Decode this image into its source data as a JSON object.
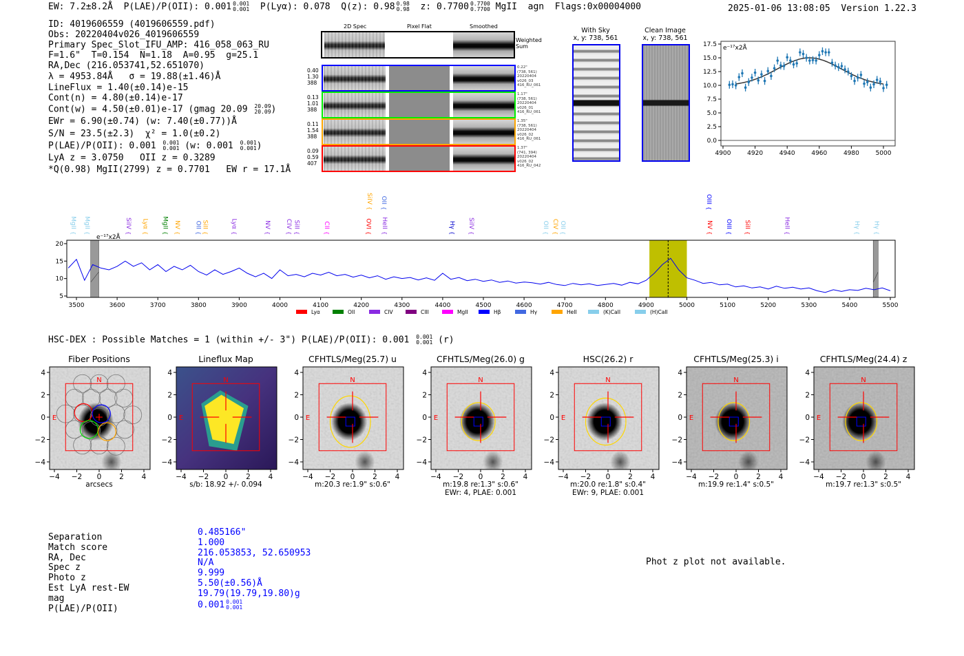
{
  "header": {
    "ew": "EW: 7.2±8.2Å",
    "plae": "P(LAE)/P(OII): 0.001",
    "plae_hi": "0.001",
    "plae_lo": "0.001",
    "plya": "P(Lyα): 0.078",
    "qz": "Q(z): 0.98",
    "qz_hi": "0.98",
    "qz_lo": "0.98",
    "z": "z: 0.7700",
    "z_hi": "0.7700",
    "z_lo": "0.7700",
    "line": "MgII",
    "class": "agn",
    "flags": "Flags:0x00004000",
    "timestamp": "2025-01-06 13:08:05",
    "version": "Version 1.22.3"
  },
  "info": {
    "id": "ID: 4019606559 (4019606559.pdf)",
    "obs": "Obs: 20220404v026_4019606559",
    "primary": "Primary Spec_Slot_IFU_AMP: 416_058_063_RU",
    "fiber": "F=1.6\"  T=0.154  N=1.18  A=0.95  g=25.1",
    "radec": "RA,Dec (216.053741,52.651070)",
    "lambda": "λ = 4953.84Å   σ = 19.88(±1.46)Å",
    "lineflux": "LineFlux = 1.40(±0.14)e-15",
    "cont_n": "Cont(n) = 4.80(±0.14)e-17",
    "cont_w": "Cont(w) = 4.50(±0.01)e-17 (gmag 20.09",
    "cont_w_hi": "20.09",
    "cont_w_lo": "20.09",
    "cont_w_end": ")",
    "ewr": "EWr = 6.90(±0.74) (w: 7.40(±0.77))Å",
    "sn": "S/N = 23.5(±2.3)  χ² = 1.0(±0.2)",
    "plae": "P(LAE)/P(OII): 0.001",
    "plae_hi": "0.001",
    "plae_lo": "0.001",
    "plae_w": " (w: 0.001",
    "plae_w_hi": "0.001",
    "plae_w_lo": "0.001",
    "plae_w_end": ")",
    "lya": "LyA z = 3.0750   OII z = 0.3289",
    "mgii": "*Q(0.98) MgII(2799) z = 0.7701   EW r = 17.1Å"
  },
  "spec2d": {
    "col_headers": [
      "2D Spec",
      "Pixel Flat",
      "Smoothed"
    ],
    "weighted_sum_label": "Weighted\nSum",
    "rows": [
      {
        "color": "#0000ff",
        "left": "0.40\n1.30\n388",
        "right": "0.22\"\n(738, 561)\n20220404\nv026_03\n416_RU_061"
      },
      {
        "color": "#00ee00",
        "left": "0.13\n1.01\n388",
        "right": "1.17\"\n(738, 561)\n20220404\nv026_01\n416_RU_061"
      },
      {
        "color": "#ffa500",
        "left": "0.11\n1.54\n388",
        "right": "1.35\"\n(738, 561)\n20220404\nv026_02\n416_RU_061"
      },
      {
        "color": "#ff0000",
        "left": "0.09\n0.59\n407",
        "right": "1.37\"\n(741, 394)\n20220404\nv026_02\n416_RU_042"
      }
    ]
  },
  "sky": {
    "with_sky": "With Sky\nx, y: 738, 561",
    "clean": "Clean Image\nx, y: 738, 561"
  },
  "chart_data": [
    {
      "type": "scatter",
      "title": "",
      "unit_label": "e⁻¹⁷x2Å",
      "xlim": [
        4900,
        5007
      ],
      "ylim": [
        -0.5,
        18
      ],
      "xticks": [
        "4900",
        "4920",
        "4940",
        "4960",
        "4980",
        "5000"
      ],
      "yticks": [
        "0.0",
        "2.5",
        "5.0",
        "7.5",
        "10.0",
        "12.5",
        "15.0",
        "17.5"
      ],
      "x_start": 4904,
      "x_step": 2,
      "values": [
        10.1,
        10.2,
        10.0,
        11.5,
        12.2,
        9.6,
        10.6,
        11.4,
        12.3,
        10.9,
        12.0,
        10.8,
        12.6,
        11.7,
        13.1,
        14.5,
        13.6,
        13.5,
        15.1,
        14.5,
        13.8,
        14.0,
        16.0,
        15.7,
        15.0,
        14.5,
        14.6,
        14.5,
        15.5,
        16.2,
        16.0,
        16.0,
        14.1,
        13.6,
        13.3,
        13.5,
        12.9,
        12.5,
        11.7,
        10.8,
        11.4,
        11.9,
        10.3,
        10.6,
        9.6,
        10.2,
        11.0,
        10.7,
        9.5,
        10.1
      ],
      "error": 0.7,
      "fit": {
        "center": 4953.84,
        "sigma": 19.88,
        "amplitude": 5.1,
        "baseline": 9.9,
        "range": [
          4908,
          5000
        ]
      }
    },
    {
      "type": "line",
      "unit_label": "e⁻¹⁷x2Å",
      "xlim": [
        3476,
        5512
      ],
      "ylim": [
        4.5,
        21
      ],
      "xticks": [
        "3500",
        "3600",
        "3700",
        "3800",
        "3900",
        "4000",
        "4100",
        "4200",
        "4300",
        "4400",
        "4500",
        "4600",
        "4700",
        "4800",
        "4900",
        "5000",
        "5100",
        "5200",
        "5300",
        "5400",
        "5500"
      ],
      "yticks": [
        "5",
        "10",
        "15",
        "20"
      ],
      "x_start": 3480,
      "x_step": 20,
      "values": [
        13,
        15.5,
        9.5,
        14,
        13,
        12.5,
        13.5,
        15,
        13.5,
        14.5,
        12.5,
        14,
        12,
        13.5,
        12.5,
        13.8,
        12,
        11,
        12.5,
        11.2,
        12,
        13,
        11.5,
        10.5,
        11.5,
        10,
        12.5,
        10.8,
        11.2,
        10.5,
        11.5,
        11,
        11.8,
        10.8,
        11.2,
        10.4,
        11,
        10.2,
        10.8,
        9.8,
        10.5,
        10,
        10.3,
        9.6,
        10.2,
        9.5,
        11.5,
        9.8,
        10.3,
        9.4,
        9.8,
        9.2,
        9.6,
        8.9,
        9.3,
        8.7,
        9.0,
        8.8,
        8.4,
        8.9,
        8.3,
        8.0,
        8.6,
        8.2,
        8.5,
        8.0,
        8.3,
        8.6,
        8.1,
        8.9,
        8.5,
        9.5,
        11.5,
        14.0,
        15.8,
        12.5,
        10.2,
        9.5,
        8.6,
        8.9,
        8.2,
        8.4,
        7.6,
        7.9,
        7.3,
        7.6,
        7.0,
        7.8,
        7.2,
        7.5,
        7.0,
        7.3,
        6.5,
        6.0,
        6.8,
        6.3,
        6.8,
        6.6,
        7.2,
        6.8,
        7.3,
        6.5
      ],
      "highlight_range": [
        4908,
        5000
      ],
      "line_center": 4954,
      "masked_ranges": [
        [
          3535,
          3555
        ],
        [
          5458,
          5470
        ]
      ],
      "line_labels": [
        {
          "name": "MgII",
          "wave": 3493,
          "color": "#87ceeb",
          "row": 0
        },
        {
          "name": "MgII",
          "wave": 3527,
          "color": "#87ceeb",
          "row": 0
        },
        {
          "name": "SiIV",
          "wave": 3629,
          "color": "#8a2be2",
          "row": 0
        },
        {
          "name": "Lyα",
          "wave": 3670,
          "color": "#ffa500",
          "row": 0
        },
        {
          "name": "MgII",
          "wave": 3719,
          "color": "#008000",
          "row": 0
        },
        {
          "name": "NV",
          "wave": 3749,
          "color": "#ffa500",
          "row": 0
        },
        {
          "name": "OII",
          "wave": 3800,
          "color": "#4169e1",
          "row": 0
        },
        {
          "name": "SiII",
          "wave": 3817,
          "color": "#ffa500",
          "row": 0
        },
        {
          "name": "Lyα",
          "wave": 3888,
          "color": "#8a2be2",
          "row": 0
        },
        {
          "name": "NV",
          "wave": 3970,
          "color": "#8a2be2",
          "row": 0
        },
        {
          "name": "CIV",
          "wave": 4023,
          "color": "#8a2be2",
          "row": 0
        },
        {
          "name": "SiII",
          "wave": 4042,
          "color": "#8a2be2",
          "row": 0
        },
        {
          "name": "CII",
          "wave": 4116,
          "color": "#ff00ff",
          "row": 0
        },
        {
          "name": "OVI",
          "wave": 4218,
          "color": "#ff0000",
          "row": 0
        },
        {
          "name": "HeII",
          "wave": 4258,
          "color": "#8a2be2",
          "row": 0
        },
        {
          "name": "Hγ",
          "wave": 4424,
          "color": "#0000cd",
          "row": 0
        },
        {
          "name": "SiIV",
          "wave": 4471,
          "color": "#8a2be2",
          "row": 0
        },
        {
          "name": "OII",
          "wave": 4654,
          "color": "#87ceeb",
          "row": 0
        },
        {
          "name": "CIV",
          "wave": 4678,
          "color": "#ffa500",
          "row": 0
        },
        {
          "name": "OII",
          "wave": 4696,
          "color": "#87ceeb",
          "row": 0
        },
        {
          "name": "NV",
          "wave": 5057,
          "color": "#ff0000",
          "row": 0
        },
        {
          "name": "OIII",
          "wave": 5104,
          "color": "#0000ff",
          "row": 0
        },
        {
          "name": "SiII",
          "wave": 5150,
          "color": "#ff0000",
          "row": 0
        },
        {
          "name": "HeII",
          "wave": 5247,
          "color": "#8a2be2",
          "row": 0
        },
        {
          "name": "Hγ",
          "wave": 5419,
          "color": "#87ceeb",
          "row": 0
        },
        {
          "name": "Hγ",
          "wave": 5467,
          "color": "#87ceeb",
          "row": 0
        },
        {
          "name": "SiIV",
          "wave": 4221,
          "color": "#ffa500",
          "row": 1
        },
        {
          "name": "OII",
          "wave": 4256,
          "color": "#4169e1",
          "row": 1
        },
        {
          "name": "OIII",
          "wave": 5055,
          "color": "#0000ff",
          "row": 1
        }
      ],
      "legend": [
        {
          "name": "Lyα",
          "color": "#ff0000"
        },
        {
          "name": "OII",
          "color": "#008000"
        },
        {
          "name": "CIV",
          "color": "#8a2be2"
        },
        {
          "name": "CIII",
          "color": "#800080"
        },
        {
          "name": "MgII",
          "color": "#ff00ff"
        },
        {
          "name": "Hβ",
          "color": "#0000ff"
        },
        {
          "name": "Hγ",
          "color": "#4169e1"
        },
        {
          "name": "HeII",
          "color": "#ffa500"
        },
        {
          "name": "(K)CaII",
          "color": "#87ceeb"
        },
        {
          "name": "(H)CaII",
          "color": "#87ceeb"
        }
      ],
      "legend_placement": "bottom"
    }
  ],
  "hsc": {
    "summary": "HSC-DEX : Possible Matches = 1 (within +/- 3\")  P(LAE)/P(OII): 0.001",
    "summary_hi": "0.001",
    "summary_lo": "0.001",
    "summary_end": " (r)",
    "compass_n": "N",
    "compass_e": "E",
    "ticks": [
      "−4",
      "−2",
      "0",
      "2",
      "4"
    ],
    "panels": [
      {
        "title": "Fiber Positions",
        "foot1": "arcsecs",
        "foot2": ""
      },
      {
        "title": "Lineflux Map",
        "foot1": "s/b: 18.92 +/- 0.094",
        "foot2": ""
      },
      {
        "title": "CFHTLS/Meg(25.7) u",
        "foot1": "m:20.3  re:1.9\"  s:0.6\"",
        "foot2": ""
      },
      {
        "title": "CFHTLS/Meg(26.0) g",
        "foot1": "m:19.8  re:1.3\"  s:0.6\"",
        "foot2": "EWr: 4, PLAE: 0.001"
      },
      {
        "title": "HSC(26.2) r",
        "foot1": "m:20.0  re:1.8\"  s:0.4\"",
        "foot2": "EWr: 9, PLAE: 0.001"
      },
      {
        "title": "CFHTLS/Meg(25.3) i",
        "foot1": "m:19.9  re:1.4\"  s:0.5\"",
        "foot2": ""
      },
      {
        "title": "CFHTLS/Meg(24.4) z",
        "foot1": "m:19.7  re:1.3\"  s:0.5\"",
        "foot2": ""
      }
    ]
  },
  "match_table": {
    "labels": [
      "Separation",
      "Match score",
      "RA, Dec",
      "Spec z",
      "Photo z",
      "Est LyA rest-EW",
      "mag",
      "P(LAE)/P(OII)"
    ],
    "values": [
      "0.485166\"",
      "1.000",
      "216.053853, 52.650953",
      "N/A",
      "9.999",
      "5.50(±0.56)Å",
      "19.79(19.79,19.80)g",
      "0.001"
    ],
    "plae_hi": "0.001",
    "plae_lo": "0.001"
  },
  "photz_message": "Phot z plot not available."
}
